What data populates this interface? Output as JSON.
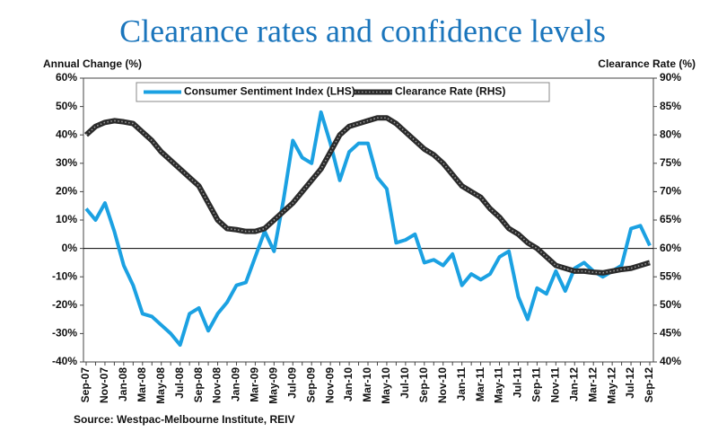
{
  "chart_data": {
    "type": "line",
    "title": "Clearance rates and confidence levels",
    "y_label": "Annual Change (%)",
    "y2_label": "Clearance Rate (%)",
    "source": "Source: Westpac-Melbourne Institute, REIV",
    "categories": [
      "Sep-07",
      null,
      "Nov-07",
      null,
      "Jan-08",
      null,
      "Mar-08",
      null,
      "May-08",
      null,
      "Jul-08",
      null,
      "Sep-08",
      null,
      "Nov-08",
      null,
      "Jan-09",
      null,
      "Mar-09",
      null,
      "May-09",
      null,
      "Jul-09",
      null,
      "Sep-09",
      null,
      "Nov-09",
      null,
      "Jan-10",
      null,
      "Mar-10",
      null,
      "May-10",
      null,
      "Jul-10",
      null,
      "Sep-10",
      null,
      "Nov-10",
      null,
      "Jan-11",
      null,
      "Mar-11",
      null,
      "May-11",
      null,
      "Jul-11",
      null,
      "Sep-11",
      null,
      "Nov-11",
      null,
      "Jan-12",
      null,
      "Mar-12",
      null,
      "May-12",
      null,
      "Jul-12",
      null,
      "Sep-12"
    ],
    "series": [
      {
        "name": "Consumer Sentiment Index (LHS)",
        "color": "#1ba1e2",
        "axis": "y",
        "values": [
          14,
          10,
          16,
          6,
          -6,
          -13,
          -23,
          -24,
          -27,
          -30,
          -34,
          -23,
          -21,
          -29,
          -23,
          -19,
          -13,
          -12,
          -3,
          6,
          -1,
          17,
          38,
          32,
          30,
          48,
          37,
          24,
          34,
          37,
          37,
          25,
          21,
          2,
          3,
          5,
          -5,
          -4,
          -6,
          -2,
          -13,
          -9,
          -11,
          -9,
          -3,
          -1,
          -17,
          -25,
          -14,
          -16,
          -8,
          -15,
          -7,
          -5,
          -8,
          -10,
          -8,
          -6,
          7,
          8,
          1
        ]
      },
      {
        "name": "Clearance Rate (RHS)",
        "color": "#2b2b2b",
        "axis": "y2",
        "values": [
          80,
          81.5,
          82.2,
          82.5,
          82.3,
          82,
          80.5,
          79,
          77,
          75.5,
          74,
          72.5,
          71,
          68,
          65,
          63.5,
          63.3,
          63,
          63,
          63.5,
          65,
          66.5,
          68,
          70,
          72,
          74,
          77,
          80,
          81.5,
          82,
          82.5,
          83,
          83,
          82,
          80.5,
          79,
          77.5,
          76.5,
          75,
          73,
          71,
          70,
          69,
          67,
          65.5,
          63.5,
          62.5,
          61,
          60,
          58.5,
          57,
          56.5,
          56,
          56,
          55.8,
          55.7,
          56,
          56.3,
          56.5,
          57,
          57.5
        ]
      }
    ],
    "ylim": [
      -40,
      60
    ],
    "yticks": [
      {
        "value": -40,
        "label": "-40%"
      },
      {
        "value": -30,
        "label": "-30%"
      },
      {
        "value": -20,
        "label": "-20%"
      },
      {
        "value": -10,
        "label": "-10%"
      },
      {
        "value": 0,
        "label": "0%"
      },
      {
        "value": 10,
        "label": "10%"
      },
      {
        "value": 20,
        "label": "20%"
      },
      {
        "value": 30,
        "label": "30%"
      },
      {
        "value": 40,
        "label": "40%"
      },
      {
        "value": 50,
        "label": "50%"
      },
      {
        "value": 60,
        "label": "60%"
      }
    ],
    "y2lim": [
      40,
      90
    ],
    "y2ticks": [
      {
        "value": 40,
        "label": "40%"
      },
      {
        "value": 45,
        "label": "45%"
      },
      {
        "value": 50,
        "label": "50%"
      },
      {
        "value": 55,
        "label": "55%"
      },
      {
        "value": 60,
        "label": "60%"
      },
      {
        "value": 65,
        "label": "65%"
      },
      {
        "value": 70,
        "label": "70%"
      },
      {
        "value": 75,
        "label": "75%"
      },
      {
        "value": 80,
        "label": "80%"
      },
      {
        "value": 85,
        "label": "85%"
      },
      {
        "value": 90,
        "label": "90%"
      }
    ],
    "reference_line": 0,
    "grid": false,
    "legend": "top"
  }
}
